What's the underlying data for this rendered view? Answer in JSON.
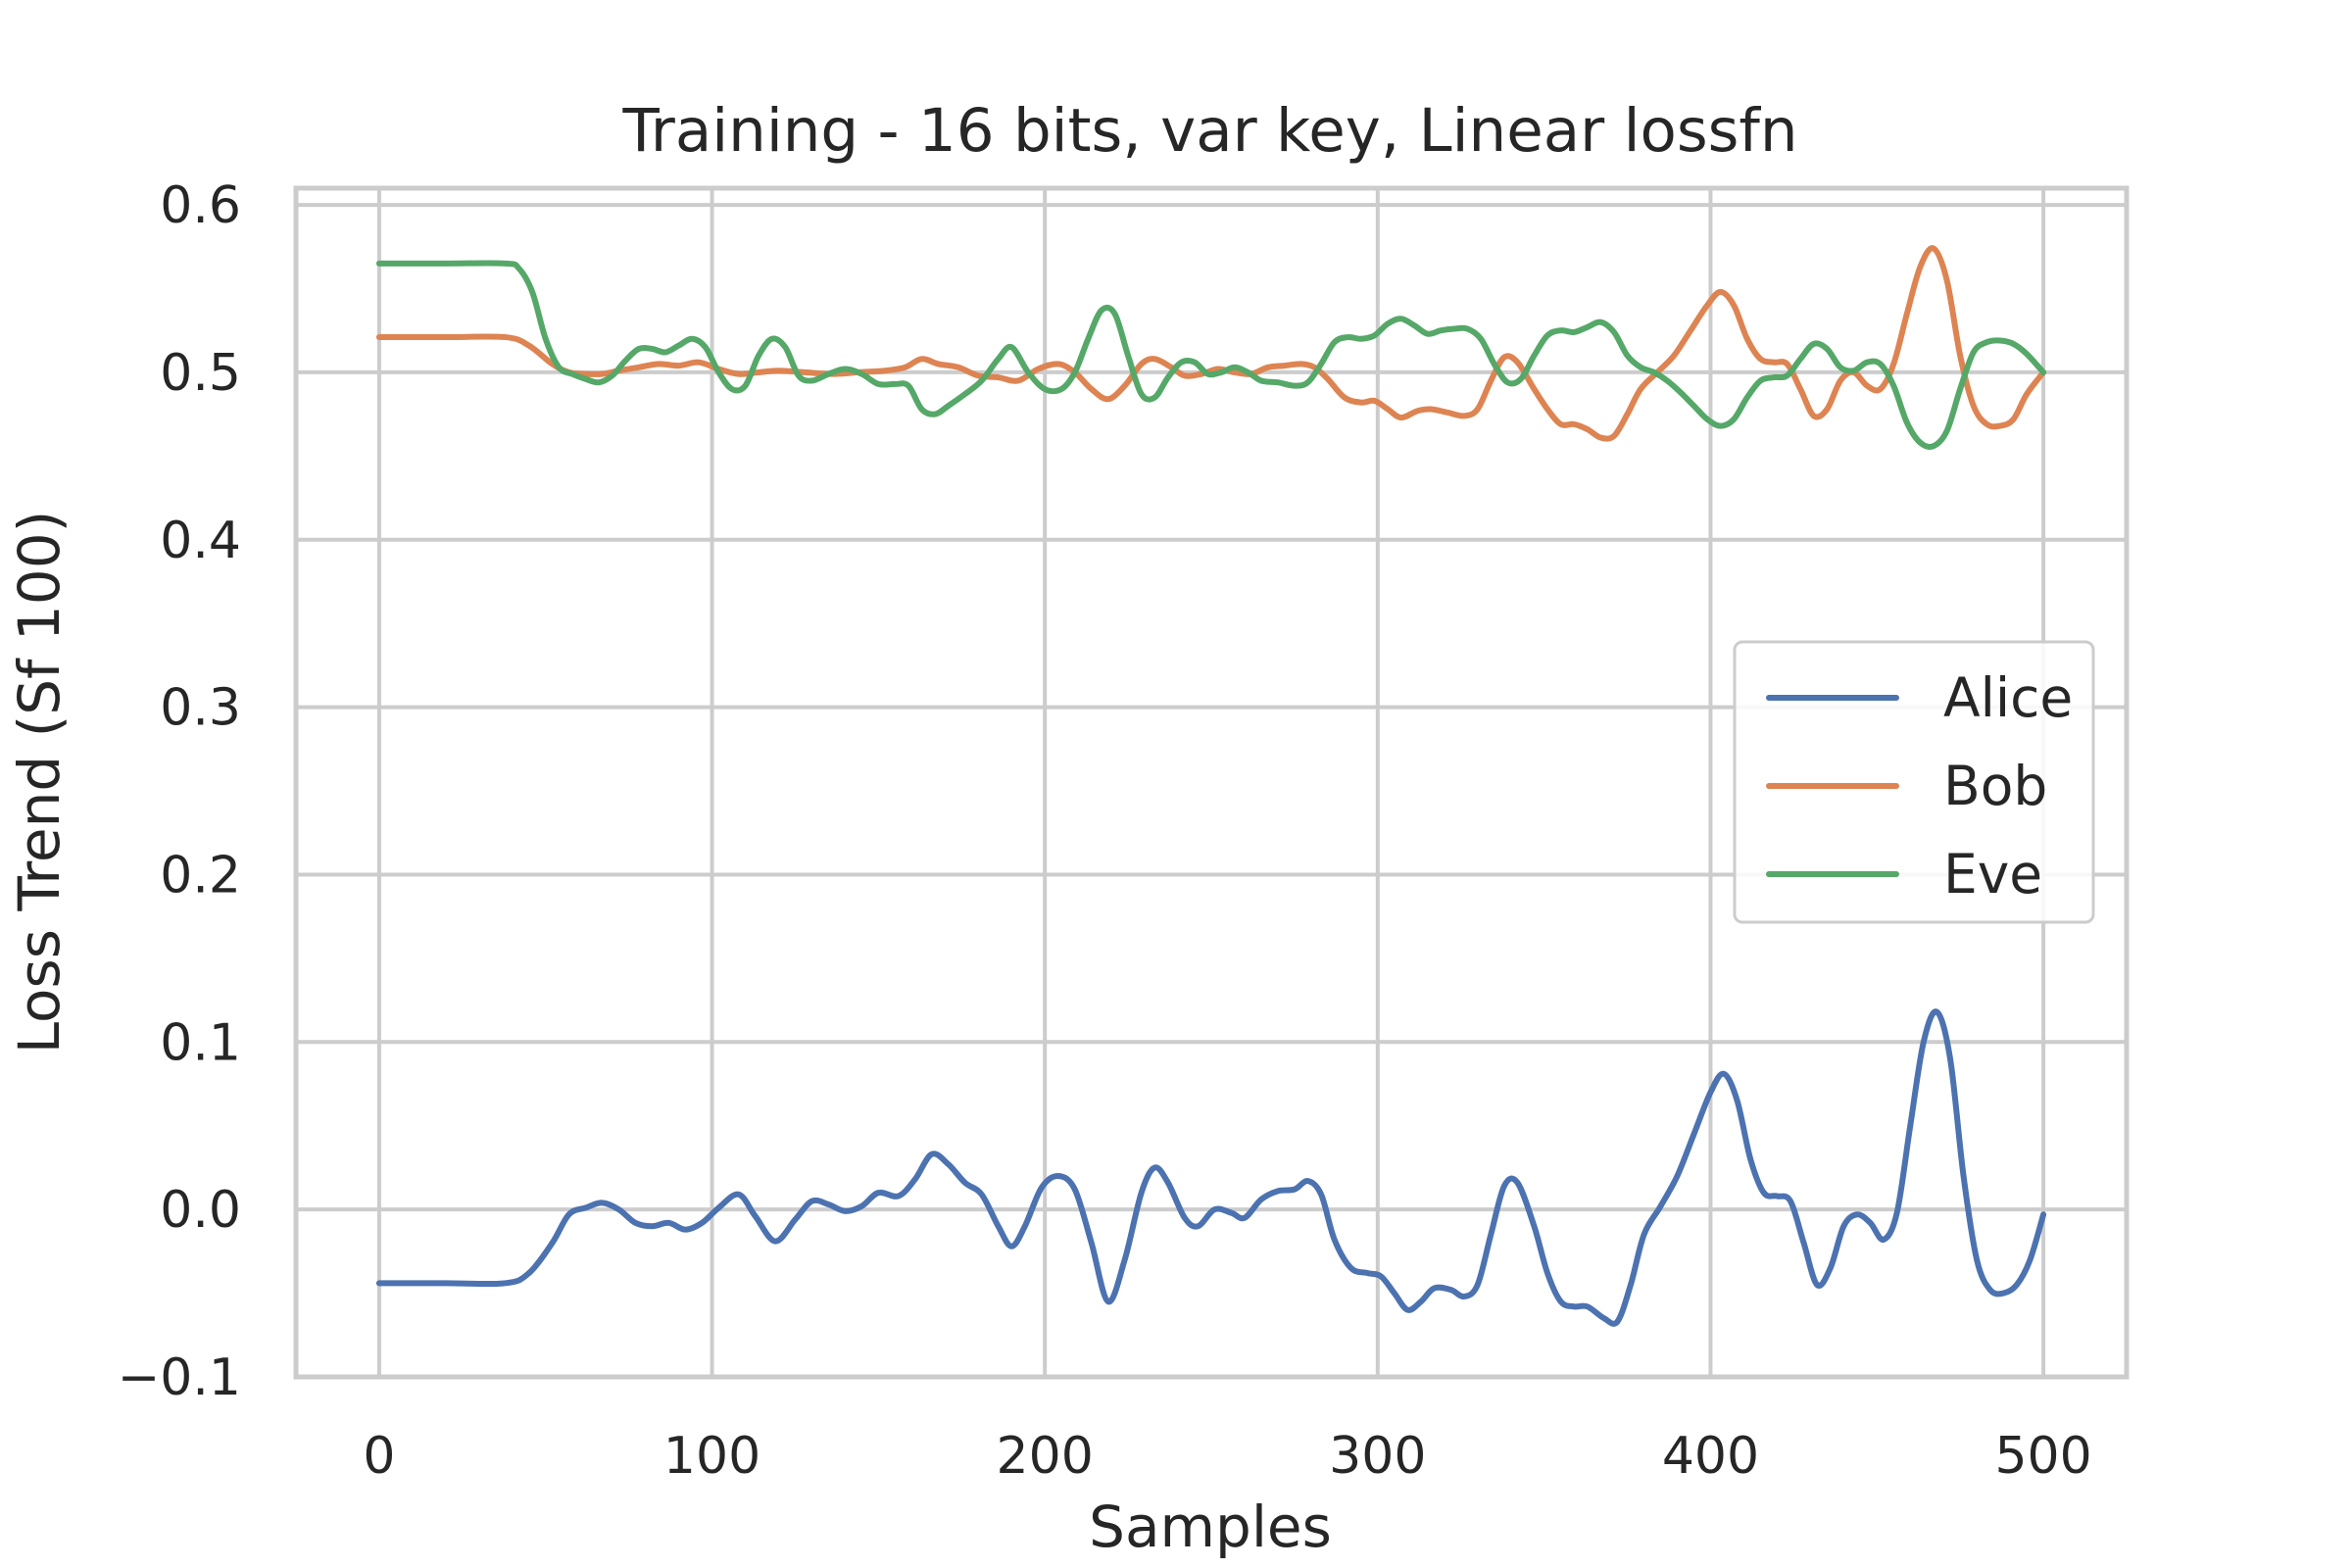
{
  "chart_data": {
    "type": "line",
    "title": "Training - 16 bits, var key, Linear lossfn",
    "xlabel": "Samples",
    "ylabel": "Loss Trend (Sf 100)",
    "xlim": [
      -25,
      525
    ],
    "ylim": [
      -0.1,
      0.61
    ],
    "xticks": [
      0,
      100,
      200,
      300,
      400,
      500
    ],
    "xtick_labels": [
      "0",
      "100",
      "200",
      "300",
      "400",
      "500"
    ],
    "yticks": [
      -0.1,
      0.0,
      0.1,
      0.2,
      0.3,
      0.4,
      0.5,
      0.6
    ],
    "ytick_labels": [
      "−0.1",
      "0.0",
      "0.1",
      "0.2",
      "0.3",
      "0.4",
      "0.5",
      "0.6"
    ],
    "grid": true,
    "legend_position": "center-right",
    "series": [
      {
        "name": "Alice",
        "color": "#4c72b0",
        "points": [
          [
            0,
            -0.044
          ],
          [
            20,
            -0.044
          ],
          [
            38,
            -0.044
          ],
          [
            45,
            -0.038
          ],
          [
            52,
            -0.02
          ],
          [
            57,
            -0.003
          ],
          [
            62,
            0.001
          ],
          [
            67,
            0.004
          ],
          [
            72,
            0.0
          ],
          [
            77,
            -0.008
          ],
          [
            82,
            -0.01
          ],
          [
            87,
            -0.008
          ],
          [
            92,
            -0.012
          ],
          [
            97,
            -0.008
          ],
          [
            102,
            0.001
          ],
          [
            108,
            0.009
          ],
          [
            113,
            -0.004
          ],
          [
            119,
            -0.019
          ],
          [
            125,
            -0.006
          ],
          [
            130,
            0.005
          ],
          [
            135,
            0.003
          ],
          [
            140,
            -0.001
          ],
          [
            145,
            0.002
          ],
          [
            150,
            0.01
          ],
          [
            156,
            0.008
          ],
          [
            161,
            0.018
          ],
          [
            166,
            0.033
          ],
          [
            171,
            0.027
          ],
          [
            176,
            0.016
          ],
          [
            181,
            0.009
          ],
          [
            186,
            -0.01
          ],
          [
            190,
            -0.022
          ],
          [
            194,
            -0.01
          ],
          [
            199,
            0.013
          ],
          [
            204,
            0.02
          ],
          [
            209,
            0.012
          ],
          [
            214,
            -0.02
          ],
          [
            219,
            -0.055
          ],
          [
            224,
            -0.03
          ],
          [
            229,
            0.01
          ],
          [
            233,
            0.025
          ],
          [
            237,
            0.016
          ],
          [
            242,
            -0.005
          ],
          [
            246,
            -0.01
          ],
          [
            251,
            0.0
          ],
          [
            256,
            -0.002
          ],
          [
            260,
            -0.005
          ],
          [
            265,
            0.006
          ],
          [
            270,
            0.011
          ],
          [
            275,
            0.012
          ],
          [
            279,
            0.017
          ],
          [
            283,
            0.009
          ],
          [
            287,
            -0.018
          ],
          [
            292,
            -0.035
          ],
          [
            297,
            -0.038
          ],
          [
            301,
            -0.04
          ],
          [
            305,
            -0.05
          ],
          [
            309,
            -0.06
          ],
          [
            313,
            -0.055
          ],
          [
            317,
            -0.047
          ],
          [
            322,
            -0.048
          ],
          [
            326,
            -0.052
          ],
          [
            330,
            -0.045
          ],
          [
            334,
            -0.015
          ],
          [
            338,
            0.014
          ],
          [
            342,
            0.016
          ],
          [
            347,
            -0.01
          ],
          [
            351,
            -0.038
          ],
          [
            355,
            -0.055
          ],
          [
            359,
            -0.058
          ],
          [
            363,
            -0.058
          ],
          [
            368,
            -0.065
          ],
          [
            372,
            -0.067
          ],
          [
            376,
            -0.045
          ],
          [
            380,
            -0.015
          ],
          [
            385,
            0.002
          ],
          [
            390,
            0.02
          ],
          [
            395,
            0.045
          ],
          [
            400,
            0.07
          ],
          [
            404,
            0.081
          ],
          [
            408,
            0.065
          ],
          [
            412,
            0.03
          ],
          [
            416,
            0.01
          ],
          [
            420,
            0.008
          ],
          [
            424,
            0.005
          ],
          [
            428,
            -0.02
          ],
          [
            432,
            -0.045
          ],
          [
            436,
            -0.035
          ],
          [
            440,
            -0.01
          ],
          [
            444,
            -0.003
          ],
          [
            448,
            -0.008
          ],
          [
            452,
            -0.018
          ],
          [
            456,
            -0.002
          ],
          [
            460,
            0.05
          ],
          [
            464,
            0.1
          ],
          [
            468,
            0.118
          ],
          [
            472,
            0.09
          ],
          [
            476,
            0.02
          ],
          [
            480,
            -0.03
          ],
          [
            484,
            -0.048
          ],
          [
            488,
            -0.05
          ],
          [
            492,
            -0.045
          ],
          [
            496,
            -0.03
          ],
          [
            500,
            -0.003
          ]
        ]
      },
      {
        "name": "Bob",
        "color": "#dd8452",
        "points": [
          [
            0,
            0.521
          ],
          [
            20,
            0.521
          ],
          [
            38,
            0.521
          ],
          [
            45,
            0.516
          ],
          [
            52,
            0.505
          ],
          [
            57,
            0.5
          ],
          [
            62,
            0.499
          ],
          [
            67,
            0.499
          ],
          [
            72,
            0.501
          ],
          [
            78,
            0.503
          ],
          [
            84,
            0.505
          ],
          [
            90,
            0.504
          ],
          [
            96,
            0.506
          ],
          [
            102,
            0.502
          ],
          [
            108,
            0.499
          ],
          [
            114,
            0.5
          ],
          [
            120,
            0.501
          ],
          [
            128,
            0.5
          ],
          [
            136,
            0.499
          ],
          [
            144,
            0.5
          ],
          [
            152,
            0.501
          ],
          [
            158,
            0.503
          ],
          [
            163,
            0.508
          ],
          [
            168,
            0.505
          ],
          [
            174,
            0.503
          ],
          [
            180,
            0.498
          ],
          [
            186,
            0.497
          ],
          [
            192,
            0.495
          ],
          [
            198,
            0.502
          ],
          [
            204,
            0.505
          ],
          [
            209,
            0.5
          ],
          [
            214,
            0.49
          ],
          [
            219,
            0.484
          ],
          [
            224,
            0.492
          ],
          [
            229,
            0.505
          ],
          [
            233,
            0.508
          ],
          [
            238,
            0.503
          ],
          [
            242,
            0.498
          ],
          [
            247,
            0.499
          ],
          [
            252,
            0.502
          ],
          [
            257,
            0.5
          ],
          [
            262,
            0.499
          ],
          [
            267,
            0.503
          ],
          [
            272,
            0.504
          ],
          [
            277,
            0.505
          ],
          [
            281,
            0.503
          ],
          [
            285,
            0.496
          ],
          [
            290,
            0.485
          ],
          [
            295,
            0.482
          ],
          [
            299,
            0.483
          ],
          [
            303,
            0.478
          ],
          [
            307,
            0.473
          ],
          [
            312,
            0.477
          ],
          [
            316,
            0.478
          ],
          [
            321,
            0.476
          ],
          [
            326,
            0.474
          ],
          [
            330,
            0.478
          ],
          [
            334,
            0.495
          ],
          [
            338,
            0.509
          ],
          [
            342,
            0.506
          ],
          [
            347,
            0.49
          ],
          [
            351,
            0.478
          ],
          [
            355,
            0.469
          ],
          [
            359,
            0.469
          ],
          [
            363,
            0.466
          ],
          [
            367,
            0.461
          ],
          [
            371,
            0.462
          ],
          [
            375,
            0.475
          ],
          [
            379,
            0.49
          ],
          [
            384,
            0.5
          ],
          [
            389,
            0.51
          ],
          [
            394,
            0.525
          ],
          [
            399,
            0.54
          ],
          [
            403,
            0.548
          ],
          [
            407,
            0.54
          ],
          [
            411,
            0.52
          ],
          [
            415,
            0.508
          ],
          [
            419,
            0.506
          ],
          [
            423,
            0.505
          ],
          [
            427,
            0.49
          ],
          [
            431,
            0.474
          ],
          [
            435,
            0.478
          ],
          [
            439,
            0.495
          ],
          [
            443,
            0.5
          ],
          [
            447,
            0.492
          ],
          [
            451,
            0.49
          ],
          [
            455,
            0.505
          ],
          [
            459,
            0.535
          ],
          [
            463,
            0.563
          ],
          [
            467,
            0.574
          ],
          [
            471,
            0.555
          ],
          [
            475,
            0.51
          ],
          [
            479,
            0.48
          ],
          [
            483,
            0.469
          ],
          [
            487,
            0.468
          ],
          [
            491,
            0.472
          ],
          [
            495,
            0.487
          ],
          [
            500,
            0.5
          ]
        ]
      },
      {
        "name": "Eve",
        "color": "#55a868",
        "points": [
          [
            0,
            0.565
          ],
          [
            20,
            0.565
          ],
          [
            38,
            0.565
          ],
          [
            42,
            0.562
          ],
          [
            46,
            0.548
          ],
          [
            50,
            0.52
          ],
          [
            54,
            0.503
          ],
          [
            58,
            0.499
          ],
          [
            62,
            0.496
          ],
          [
            66,
            0.494
          ],
          [
            70,
            0.498
          ],
          [
            74,
            0.507
          ],
          [
            78,
            0.514
          ],
          [
            82,
            0.514
          ],
          [
            86,
            0.512
          ],
          [
            90,
            0.516
          ],
          [
            94,
            0.52
          ],
          [
            98,
            0.515
          ],
          [
            102,
            0.5
          ],
          [
            106,
            0.49
          ],
          [
            110,
            0.492
          ],
          [
            114,
            0.51
          ],
          [
            118,
            0.52
          ],
          [
            122,
            0.515
          ],
          [
            126,
            0.498
          ],
          [
            130,
            0.495
          ],
          [
            135,
            0.499
          ],
          [
            140,
            0.502
          ],
          [
            145,
            0.499
          ],
          [
            150,
            0.493
          ],
          [
            155,
            0.493
          ],
          [
            159,
            0.492
          ],
          [
            163,
            0.478
          ],
          [
            167,
            0.475
          ],
          [
            171,
            0.48
          ],
          [
            176,
            0.487
          ],
          [
            181,
            0.495
          ],
          [
            186,
            0.508
          ],
          [
            190,
            0.515
          ],
          [
            195,
            0.5
          ],
          [
            200,
            0.49
          ],
          [
            205,
            0.49
          ],
          [
            209,
            0.5
          ],
          [
            213,
            0.52
          ],
          [
            217,
            0.537
          ],
          [
            221,
            0.535
          ],
          [
            225,
            0.51
          ],
          [
            229,
            0.487
          ],
          [
            233,
            0.485
          ],
          [
            237,
            0.497
          ],
          [
            241,
            0.506
          ],
          [
            245,
            0.506
          ],
          [
            249,
            0.499
          ],
          [
            253,
            0.5
          ],
          [
            257,
            0.503
          ],
          [
            261,
            0.5
          ],
          [
            265,
            0.495
          ],
          [
            270,
            0.494
          ],
          [
            275,
            0.492
          ],
          [
            279,
            0.494
          ],
          [
            283,
            0.505
          ],
          [
            287,
            0.518
          ],
          [
            291,
            0.521
          ],
          [
            295,
            0.52
          ],
          [
            299,
            0.522
          ],
          [
            303,
            0.529
          ],
          [
            307,
            0.532
          ],
          [
            311,
            0.528
          ],
          [
            315,
            0.523
          ],
          [
            319,
            0.525
          ],
          [
            323,
            0.526
          ],
          [
            327,
            0.526
          ],
          [
            331,
            0.52
          ],
          [
            335,
            0.505
          ],
          [
            339,
            0.494
          ],
          [
            343,
            0.496
          ],
          [
            347,
            0.51
          ],
          [
            351,
            0.522
          ],
          [
            355,
            0.525
          ],
          [
            359,
            0.524
          ],
          [
            363,
            0.527
          ],
          [
            367,
            0.53
          ],
          [
            371,
            0.524
          ],
          [
            375,
            0.51
          ],
          [
            379,
            0.503
          ],
          [
            383,
            0.5
          ],
          [
            387,
            0.495
          ],
          [
            391,
            0.488
          ],
          [
            395,
            0.48
          ],
          [
            399,
            0.472
          ],
          [
            403,
            0.468
          ],
          [
            407,
            0.472
          ],
          [
            411,
            0.485
          ],
          [
            415,
            0.495
          ],
          [
            419,
            0.497
          ],
          [
            423,
            0.498
          ],
          [
            427,
            0.508
          ],
          [
            431,
            0.517
          ],
          [
            435,
            0.514
          ],
          [
            439,
            0.503
          ],
          [
            443,
            0.501
          ],
          [
            447,
            0.506
          ],
          [
            451,
            0.505
          ],
          [
            455,
            0.492
          ],
          [
            459,
            0.47
          ],
          [
            463,
            0.458
          ],
          [
            467,
            0.456
          ],
          [
            471,
            0.465
          ],
          [
            475,
            0.49
          ],
          [
            479,
            0.512
          ],
          [
            483,
            0.518
          ],
          [
            487,
            0.519
          ],
          [
            491,
            0.517
          ],
          [
            495,
            0.511
          ],
          [
            500,
            0.5
          ]
        ]
      }
    ]
  }
}
